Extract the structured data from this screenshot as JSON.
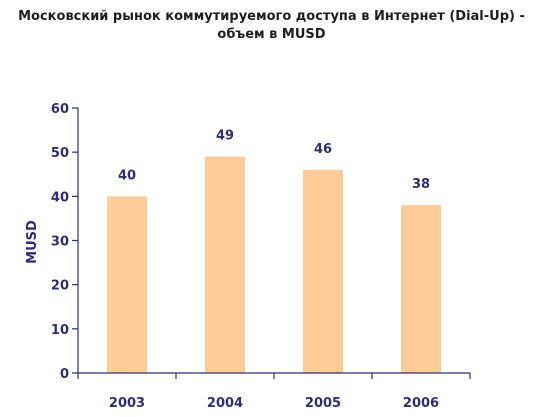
{
  "chart_data": {
    "type": "bar",
    "title_line1": "Московский рынок коммутируемого доступа в Интернет (Dial-Up) -",
    "title_line2": "объем в MUSD",
    "xlabel": "",
    "ylabel": "MUSD",
    "categories": [
      "2003",
      "2004",
      "2005",
      "2006"
    ],
    "values": [
      40,
      49,
      46,
      38
    ],
    "ylim": [
      0,
      60
    ],
    "yticks": [
      0,
      10,
      20,
      30,
      40,
      50,
      60
    ],
    "grid": false,
    "bar_color": "#FFCC99",
    "text_color": "#2E2E6E"
  }
}
